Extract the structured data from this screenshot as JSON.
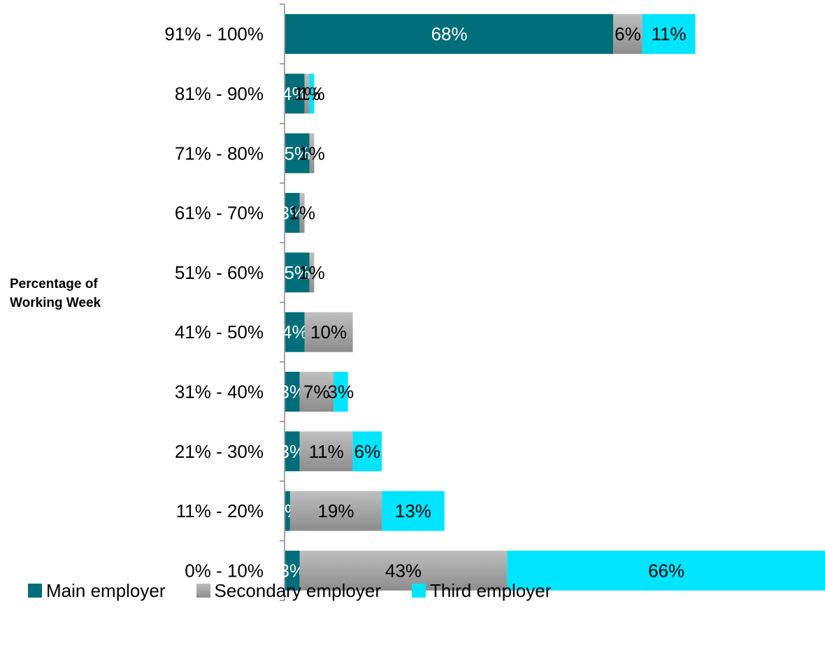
{
  "chart_data": {
    "type": "bar",
    "orientation": "horizontal",
    "stacked": true,
    "ylabel": "Percentage of Working Week",
    "categories": [
      "91% - 100%",
      "81% - 90%",
      "71% - 80%",
      "61% - 70%",
      "51% - 60%",
      "41% - 50%",
      "31% - 40%",
      "21% - 30%",
      "11% - 20%",
      "0% - 10%"
    ],
    "series": [
      {
        "name": "Main employer",
        "color": "#006E7A",
        "label_color": "#FFFFFF",
        "values": [
          68,
          4,
          5,
          3,
          5,
          4,
          3,
          3,
          1,
          3
        ],
        "labels": [
          "68%",
          "4%",
          "5%",
          "3%",
          "5%",
          "4%",
          "3%",
          "3%",
          "1%",
          "3%"
        ]
      },
      {
        "name": "Secondary employer",
        "color": "#A6A6A6",
        "label_color": "#000000",
        "values": [
          6,
          1,
          1,
          1,
          1,
          10,
          7,
          11,
          19,
          43
        ],
        "labels": [
          "6%",
          "1%",
          "1%",
          "1%",
          "1%",
          "10%",
          "7%",
          "11%",
          "19%",
          "43%"
        ]
      },
      {
        "name": "Third employer",
        "color": "#00E5FF",
        "label_color": "#000000",
        "values": [
          11,
          1,
          0,
          0,
          0,
          0,
          3,
          6,
          13,
          66
        ],
        "labels": [
          "11%",
          "1%",
          "",
          "",
          "",
          "",
          "3%",
          "6%",
          "13%",
          "66%"
        ]
      }
    ],
    "legend_position": "bottom",
    "grid": false
  }
}
